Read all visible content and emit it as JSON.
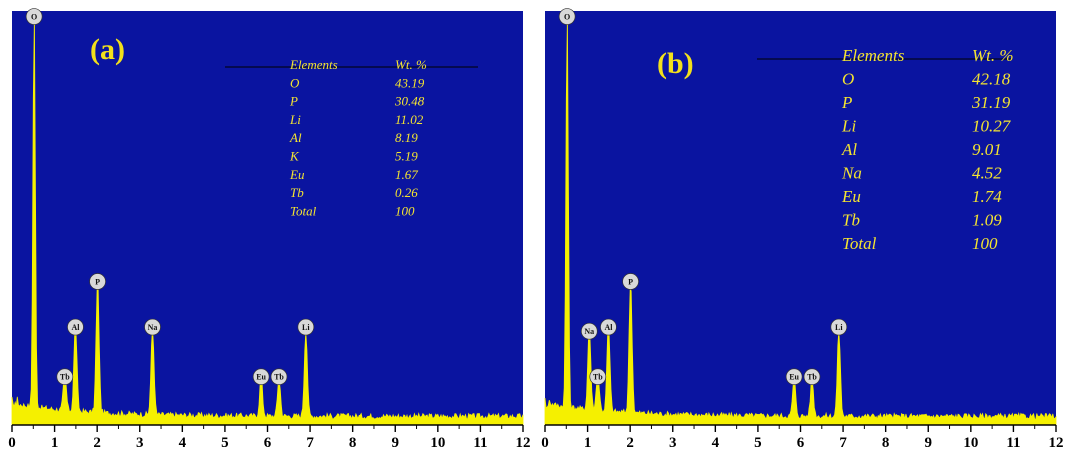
{
  "colors": {
    "plot_background": "#0a14a0",
    "spectrum": "#f5f000",
    "text_yellow": "#f4e431",
    "marker_fill": "#d9d9d9"
  },
  "chart_data": [
    {
      "type": "area",
      "panel_label": "(a)",
      "xlim": [
        0,
        12
      ],
      "ylim": [
        0,
        100
      ],
      "x_ticks": [
        "0",
        "1",
        "2",
        "3",
        "4",
        "5",
        "6",
        "7",
        "8",
        "9",
        "10",
        "11",
        "12"
      ],
      "xlabel": "",
      "ylabel": "",
      "grid": false,
      "peaks": [
        {
          "element": "O",
          "x": 0.52,
          "height": 96
        },
        {
          "element": "Tb",
          "x": 1.24,
          "height": 9
        },
        {
          "element": "Al",
          "x": 1.49,
          "height": 21
        },
        {
          "element": "P",
          "x": 2.01,
          "height": 32
        },
        {
          "element": "Na",
          "x": 3.3,
          "height": 21
        },
        {
          "element": "Eu",
          "x": 5.85,
          "height": 9
        },
        {
          "element": "Tb",
          "x": 6.27,
          "height": 9
        },
        {
          "element": "Li",
          "x": 6.9,
          "height": 21
        }
      ],
      "table": {
        "headers": [
          "Elements",
          "Wt. %"
        ],
        "rows": [
          [
            "O",
            "43.19"
          ],
          [
            "P",
            "30.48"
          ],
          [
            "Li",
            "11.02"
          ],
          [
            "Al",
            "8.19"
          ],
          [
            "K",
            "5.19"
          ],
          [
            "Eu",
            "1.67"
          ],
          [
            "Tb",
            "0.26"
          ],
          [
            "Total",
            "100"
          ]
        ]
      }
    },
    {
      "type": "area",
      "panel_label": "(b)",
      "xlim": [
        0,
        12
      ],
      "ylim": [
        0,
        100
      ],
      "x_ticks": [
        "0",
        "1",
        "2",
        "3",
        "4",
        "5",
        "6",
        "7",
        "8",
        "9",
        "10",
        "11",
        "12"
      ],
      "xlabel": "",
      "ylabel": "",
      "grid": false,
      "peaks": [
        {
          "element": "O",
          "x": 0.52,
          "height": 96
        },
        {
          "element": "Na",
          "x": 1.04,
          "height": 20
        },
        {
          "element": "Tb",
          "x": 1.24,
          "height": 9
        },
        {
          "element": "Al",
          "x": 1.49,
          "height": 21
        },
        {
          "element": "P",
          "x": 2.01,
          "height": 32
        },
        {
          "element": "Eu",
          "x": 5.85,
          "height": 9
        },
        {
          "element": "Tb",
          "x": 6.27,
          "height": 9
        },
        {
          "element": "Li",
          "x": 6.9,
          "height": 21
        }
      ],
      "table": {
        "headers": [
          "Elements",
          "Wt. %"
        ],
        "rows": [
          [
            "O",
            "42.18"
          ],
          [
            "P",
            "31.19"
          ],
          [
            "Li",
            "10.27"
          ],
          [
            "Al",
            "9.01"
          ],
          [
            "Na",
            "4.52"
          ],
          [
            "Eu",
            "1.74"
          ],
          [
            "Tb",
            "1.09"
          ],
          [
            "Total",
            "100"
          ]
        ]
      }
    }
  ]
}
